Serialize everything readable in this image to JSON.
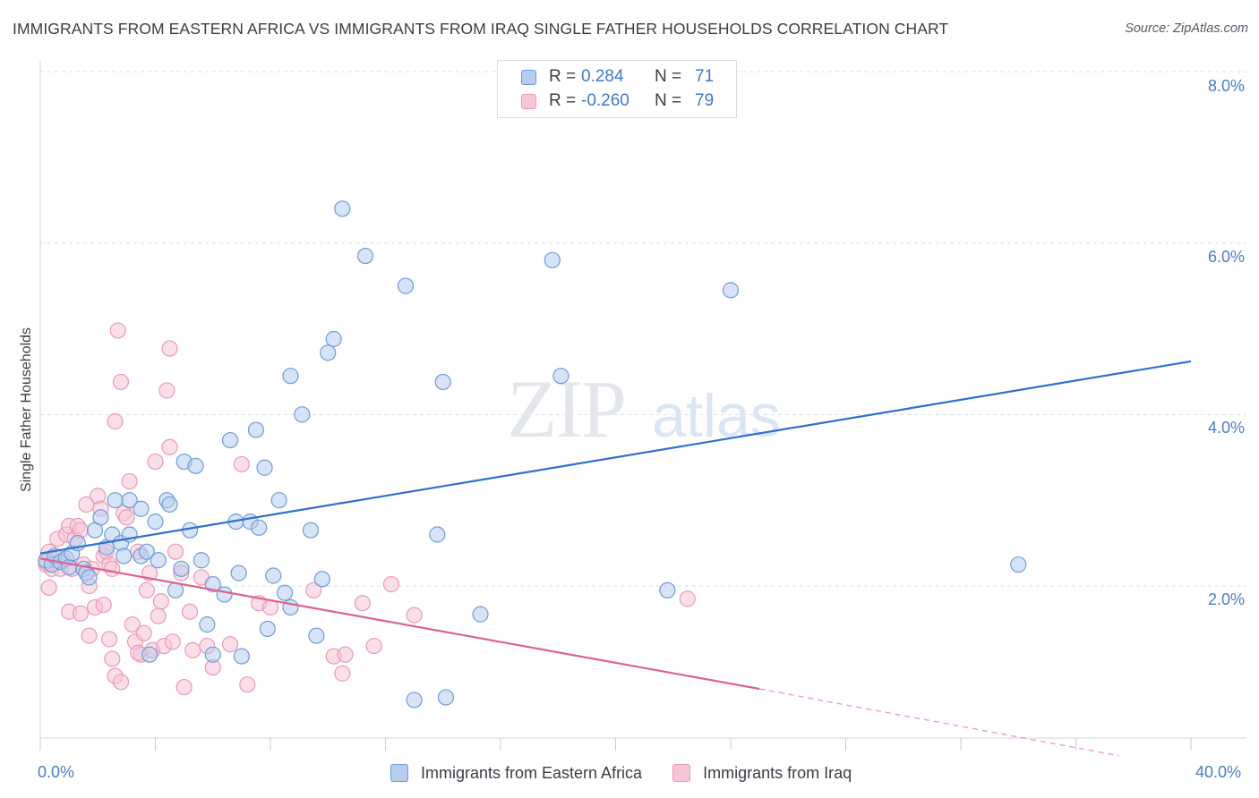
{
  "header": {
    "title": "IMMIGRANTS FROM EASTERN AFRICA VS IMMIGRANTS FROM IRAQ SINGLE FATHER HOUSEHOLDS CORRELATION CHART",
    "source": "Source: ZipAtlas.com"
  },
  "watermark": {
    "left": "ZIP",
    "right": "atlas"
  },
  "legend": {
    "series1": {
      "r_label": "R =",
      "r_value": "0.284",
      "n_label": "N =",
      "n_value": "71"
    },
    "series2": {
      "r_label": "R =",
      "r_value": "-0.260",
      "n_label": "N =",
      "n_value": "79"
    }
  },
  "bottom_legend": {
    "series1": "Immigrants from Eastern Africa",
    "series2": "Immigrants from Iraq"
  },
  "axes": {
    "x_min_label": "0.0%",
    "x_max_label": "40.0%",
    "y_ticks": [
      "2.0%",
      "4.0%",
      "6.0%",
      "8.0%"
    ],
    "ylabel": "Single Father Households"
  },
  "colors": {
    "blue_fill": "#b7cdf0",
    "blue_stroke": "#6f9bd8",
    "blue_line": "#2f6fcf",
    "pink_fill": "#f7c5d5",
    "pink_stroke": "#eb98b4",
    "pink_line": "#e0608e",
    "grid": "#d9dde6",
    "tick_text": "#4a7cc7"
  },
  "chart_data": {
    "type": "scatter",
    "title": "IMMIGRANTS FROM EASTERN AFRICA VS IMMIGRANTS FROM IRAQ SINGLE FATHER HOUSEHOLDS CORRELATION CHART",
    "xlabel": "",
    "ylabel": "Single Father Households",
    "xlim": [
      0,
      40
    ],
    "ylim": [
      0,
      8.3
    ],
    "y_gridlines": [
      2,
      4,
      6,
      8
    ],
    "series": [
      {
        "name": "Immigrants from Eastern Africa",
        "color": "#6f9bd8",
        "R": 0.284,
        "N": 71,
        "trend": {
          "x": [
            0,
            40
          ],
          "y": [
            2.38,
            4.62
          ]
        },
        "points": [
          [
            0.2,
            2.3
          ],
          [
            0.4,
            2.25
          ],
          [
            0.5,
            2.35
          ],
          [
            0.7,
            2.28
          ],
          [
            0.9,
            2.32
          ],
          [
            1.0,
            2.22
          ],
          [
            1.1,
            2.38
          ],
          [
            1.3,
            2.5
          ],
          [
            1.5,
            2.2
          ],
          [
            1.6,
            2.15
          ],
          [
            1.7,
            2.1
          ],
          [
            1.9,
            2.65
          ],
          [
            2.1,
            2.8
          ],
          [
            2.3,
            2.45
          ],
          [
            2.5,
            2.6
          ],
          [
            2.6,
            3.0
          ],
          [
            2.8,
            2.5
          ],
          [
            2.9,
            2.35
          ],
          [
            3.1,
            2.6
          ],
          [
            3.1,
            3.0
          ],
          [
            3.5,
            2.9
          ],
          [
            3.5,
            2.35
          ],
          [
            3.7,
            2.4
          ],
          [
            4.0,
            2.75
          ],
          [
            4.1,
            2.3
          ],
          [
            4.4,
            3.0
          ],
          [
            4.5,
            2.95
          ],
          [
            4.7,
            1.95
          ],
          [
            4.9,
            2.2
          ],
          [
            5.0,
            3.45
          ],
          [
            5.2,
            2.65
          ],
          [
            5.4,
            3.4
          ],
          [
            5.6,
            2.3
          ],
          [
            5.8,
            1.55
          ],
          [
            6.0,
            2.02
          ],
          [
            6.0,
            1.2
          ],
          [
            6.4,
            1.9
          ],
          [
            6.6,
            3.7
          ],
          [
            6.8,
            2.75
          ],
          [
            6.9,
            2.15
          ],
          [
            7.0,
            1.18
          ],
          [
            7.3,
            2.75
          ],
          [
            7.5,
            3.82
          ],
          [
            7.6,
            2.68
          ],
          [
            7.8,
            3.38
          ],
          [
            7.9,
            1.5
          ],
          [
            8.1,
            2.12
          ],
          [
            8.3,
            3.0
          ],
          [
            8.5,
            1.92
          ],
          [
            8.7,
            4.45
          ],
          [
            8.7,
            1.75
          ],
          [
            9.1,
            4.0
          ],
          [
            9.4,
            2.65
          ],
          [
            9.6,
            1.42
          ],
          [
            9.8,
            2.08
          ],
          [
            10.0,
            4.72
          ],
          [
            10.2,
            4.88
          ],
          [
            10.5,
            6.4
          ],
          [
            11.3,
            5.85
          ],
          [
            12.7,
            5.5
          ],
          [
            13.8,
            2.6
          ],
          [
            14.0,
            4.38
          ],
          [
            14.1,
            0.7
          ],
          [
            13.0,
            0.67
          ],
          [
            15.3,
            1.67
          ],
          [
            17.8,
            5.8
          ],
          [
            18.1,
            4.45
          ],
          [
            21.8,
            1.95
          ],
          [
            24.0,
            5.45
          ],
          [
            34.0,
            2.25
          ],
          [
            3.8,
            1.2
          ]
        ]
      },
      {
        "name": "Immigrants from Iraq",
        "color": "#eb98b4",
        "R": -0.26,
        "N": 79,
        "trend": {
          "x": [
            0,
            25
          ],
          "y": [
            2.32,
            0.8
          ]
        },
        "trend_extrapolated": {
          "x": [
            25,
            37.5
          ],
          "y": [
            0.8,
            0.02
          ]
        },
        "points": [
          [
            0.2,
            2.25
          ],
          [
            0.3,
            2.4
          ],
          [
            0.4,
            2.2
          ],
          [
            0.5,
            2.3
          ],
          [
            0.6,
            2.55
          ],
          [
            0.7,
            2.2
          ],
          [
            0.8,
            2.3
          ],
          [
            0.9,
            2.6
          ],
          [
            1.0,
            2.7
          ],
          [
            1.1,
            2.2
          ],
          [
            1.2,
            2.55
          ],
          [
            1.3,
            2.7
          ],
          [
            1.4,
            2.65
          ],
          [
            1.5,
            2.25
          ],
          [
            1.6,
            2.95
          ],
          [
            1.7,
            2.0
          ],
          [
            1.8,
            2.2
          ],
          [
            2.0,
            3.05
          ],
          [
            2.1,
            2.9
          ],
          [
            2.2,
            2.35
          ],
          [
            2.3,
            2.4
          ],
          [
            2.4,
            2.25
          ],
          [
            2.5,
            2.2
          ],
          [
            2.5,
            1.15
          ],
          [
            2.6,
            3.92
          ],
          [
            2.7,
            4.98
          ],
          [
            2.8,
            4.38
          ],
          [
            2.9,
            2.85
          ],
          [
            3.0,
            2.8
          ],
          [
            3.1,
            3.22
          ],
          [
            3.2,
            1.55
          ],
          [
            3.3,
            1.35
          ],
          [
            3.5,
            1.2
          ],
          [
            3.6,
            1.45
          ],
          [
            3.7,
            1.95
          ],
          [
            3.8,
            2.15
          ],
          [
            3.9,
            1.25
          ],
          [
            4.0,
            3.45
          ],
          [
            4.1,
            1.65
          ],
          [
            4.2,
            1.82
          ],
          [
            4.3,
            1.3
          ],
          [
            4.4,
            4.28
          ],
          [
            4.5,
            3.62
          ],
          [
            4.5,
            4.77
          ],
          [
            4.6,
            1.35
          ],
          [
            4.7,
            2.4
          ],
          [
            4.9,
            2.15
          ],
          [
            5.0,
            0.82
          ],
          [
            5.2,
            1.7
          ],
          [
            5.3,
            1.25
          ],
          [
            5.6,
            2.1
          ],
          [
            5.8,
            1.3
          ],
          [
            6.0,
            1.05
          ],
          [
            6.6,
            1.32
          ],
          [
            7.0,
            3.42
          ],
          [
            7.2,
            0.85
          ],
          [
            7.6,
            1.8
          ],
          [
            8.0,
            1.75
          ],
          [
            9.5,
            1.95
          ],
          [
            10.2,
            1.18
          ],
          [
            10.5,
            0.98
          ],
          [
            10.6,
            1.2
          ],
          [
            11.2,
            1.8
          ],
          [
            11.6,
            1.3
          ],
          [
            12.2,
            2.02
          ],
          [
            13.0,
            1.66
          ],
          [
            22.5,
            1.85
          ],
          [
            0.3,
            1.98
          ],
          [
            1.0,
            1.7
          ],
          [
            1.7,
            1.42
          ],
          [
            2.4,
            1.38
          ],
          [
            2.6,
            0.95
          ],
          [
            2.8,
            0.88
          ],
          [
            3.4,
            1.22
          ],
          [
            1.9,
            1.75
          ],
          [
            3.4,
            2.4
          ],
          [
            2.2,
            1.78
          ],
          [
            0.2,
            2.28
          ],
          [
            1.4,
            1.68
          ]
        ]
      }
    ]
  }
}
